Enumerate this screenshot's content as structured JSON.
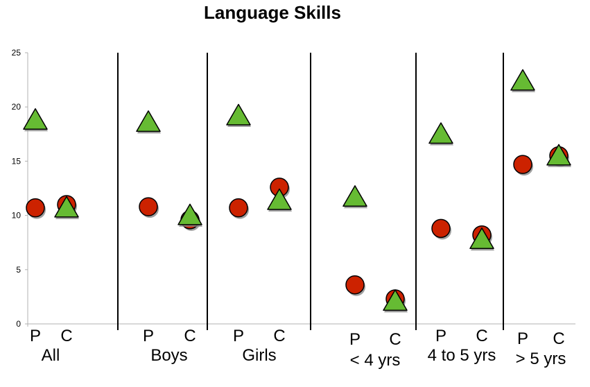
{
  "chart_data": {
    "type": "scatter",
    "title": "Language Skills",
    "xlabel": "",
    "ylabel": "",
    "ylim": [
      0,
      25
    ],
    "yticks": [
      0,
      5,
      10,
      15,
      20,
      25
    ],
    "grid": false,
    "legend": "none",
    "groups": [
      {
        "label": "All",
        "ticks": [
          "P",
          "C"
        ]
      },
      {
        "label": "Boys",
        "ticks": [
          "P",
          "C"
        ]
      },
      {
        "label": "Girls",
        "ticks": [
          "P",
          "C"
        ]
      },
      {
        "label": "< 4 yrs",
        "ticks": [
          "P",
          "C"
        ]
      },
      {
        "label": "4 to 5 yrs",
        "ticks": [
          "P",
          "C"
        ]
      },
      {
        "label": "> 5 yrs",
        "ticks": [
          "P",
          "C"
        ]
      }
    ],
    "series": [
      {
        "marker": "circle",
        "color": "#cc2200",
        "values": [
          {
            "group": "All",
            "tick": "P",
            "y": 10.7
          },
          {
            "group": "All",
            "tick": "C",
            "y": 11.0
          },
          {
            "group": "Boys",
            "tick": "P",
            "y": 10.8
          },
          {
            "group": "Boys",
            "tick": "C",
            "y": 9.6
          },
          {
            "group": "Girls",
            "tick": "P",
            "y": 10.7
          },
          {
            "group": "Girls",
            "tick": "C",
            "y": 12.6
          },
          {
            "group": "< 4 yrs",
            "tick": "P",
            "y": 3.6
          },
          {
            "group": "< 4 yrs",
            "tick": "C",
            "y": 2.3
          },
          {
            "group": "4 to 5 yrs",
            "tick": "P",
            "y": 8.8
          },
          {
            "group": "4 to 5 yrs",
            "tick": "C",
            "y": 8.2
          },
          {
            "group": "> 5 yrs",
            "tick": "P",
            "y": 14.7
          },
          {
            "group": "> 5 yrs",
            "tick": "C",
            "y": 15.5
          }
        ]
      },
      {
        "marker": "triangle",
        "color": "#66bb33",
        "values": [
          {
            "group": "All",
            "tick": "P",
            "y": 18.8
          },
          {
            "group": "All",
            "tick": "C",
            "y": 10.7
          },
          {
            "group": "Boys",
            "tick": "P",
            "y": 18.6
          },
          {
            "group": "Boys",
            "tick": "C",
            "y": 10.0
          },
          {
            "group": "Girls",
            "tick": "P",
            "y": 19.2
          },
          {
            "group": "Girls",
            "tick": "C",
            "y": 11.4
          },
          {
            "group": "< 4 yrs",
            "tick": "P",
            "y": 11.7
          },
          {
            "group": "< 4 yrs",
            "tick": "C",
            "y": 2.1
          },
          {
            "group": "4 to 5 yrs",
            "tick": "P",
            "y": 17.5
          },
          {
            "group": "4 to 5 yrs",
            "tick": "C",
            "y": 7.8
          },
          {
            "group": "> 5 yrs",
            "tick": "P",
            "y": 22.4
          },
          {
            "group": "> 5 yrs",
            "tick": "C",
            "y": 15.5
          }
        ]
      }
    ]
  }
}
